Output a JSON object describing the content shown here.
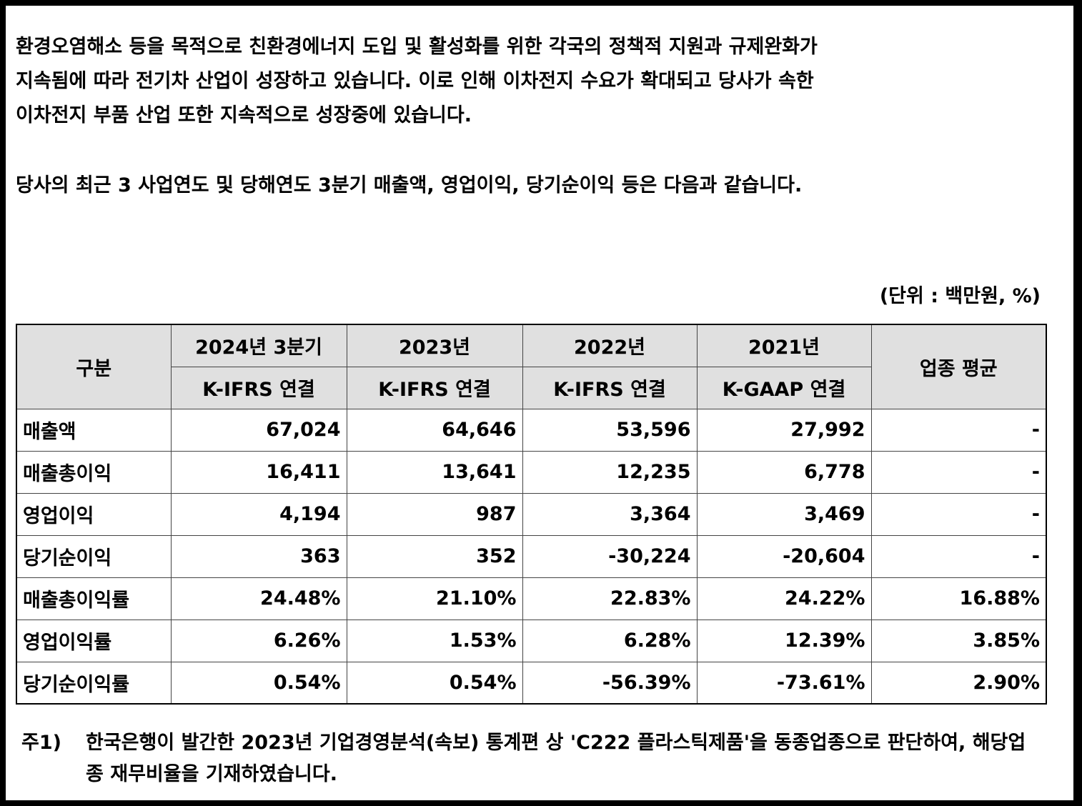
{
  "paragraphs": [
    "환경오염해소 등을 목적으로 친환경에너지 도입 및 활성화를 위한 각국의 정책적 지원과 규제완화가 지속됨에 따라 전기차 산업이 성장하고 있습니다. 이로 인해 이차전지 수요가 확대되고 당사가 속한 이차전지 부품 산업 또한 지속적으로 성장중에 있습니다.",
    "당사의 최근 3 사업연도 및 당해연도 3분기 매출액, 영업이익, 당기순이익 등은 다음과 같습니다."
  ],
  "unit_label": "(단위 : 백만원, %)",
  "table": {
    "header_category": "구분",
    "header_industry": "업종 평균",
    "periods": [
      {
        "year": "2024년 3분기",
        "basis": "K-IFRS 연결"
      },
      {
        "year": "2023년",
        "basis": "K-IFRS 연결"
      },
      {
        "year": "2022년",
        "basis": "K-IFRS 연결"
      },
      {
        "year": "2021년",
        "basis": "K-GAAP 연결"
      }
    ],
    "rows": [
      {
        "label": "매출액",
        "values": [
          "67,024",
          "64,646",
          "53,596",
          "27,992",
          "-"
        ]
      },
      {
        "label": "매출총이익",
        "values": [
          "16,411",
          "13,641",
          "12,235",
          "6,778",
          "-"
        ]
      },
      {
        "label": "영업이익",
        "values": [
          "4,194",
          "987",
          "3,364",
          "3,469",
          "-"
        ]
      },
      {
        "label": "당기순이익",
        "values": [
          "363",
          "352",
          "-30,224",
          "-20,604",
          "-"
        ]
      },
      {
        "label": "매출총이익률",
        "values": [
          "24.48%",
          "21.10%",
          "22.83%",
          "24.22%",
          "16.88%"
        ]
      },
      {
        "label": "영업이익률",
        "values": [
          "6.26%",
          "1.53%",
          "6.28%",
          "12.39%",
          "3.85%"
        ]
      },
      {
        "label": "당기순이익률",
        "values": [
          "0.54%",
          "0.54%",
          "-56.39%",
          "-73.61%",
          "2.90%"
        ]
      }
    ]
  },
  "footnote": {
    "mark": "주1)",
    "text": "한국은행이 발간한 2023년 기업경영분석(속보) 통계편 상 'C222 플라스틱제품'을 동종업종으로 판단하여, 해당업종 재무비율을 기재하였습니다."
  }
}
